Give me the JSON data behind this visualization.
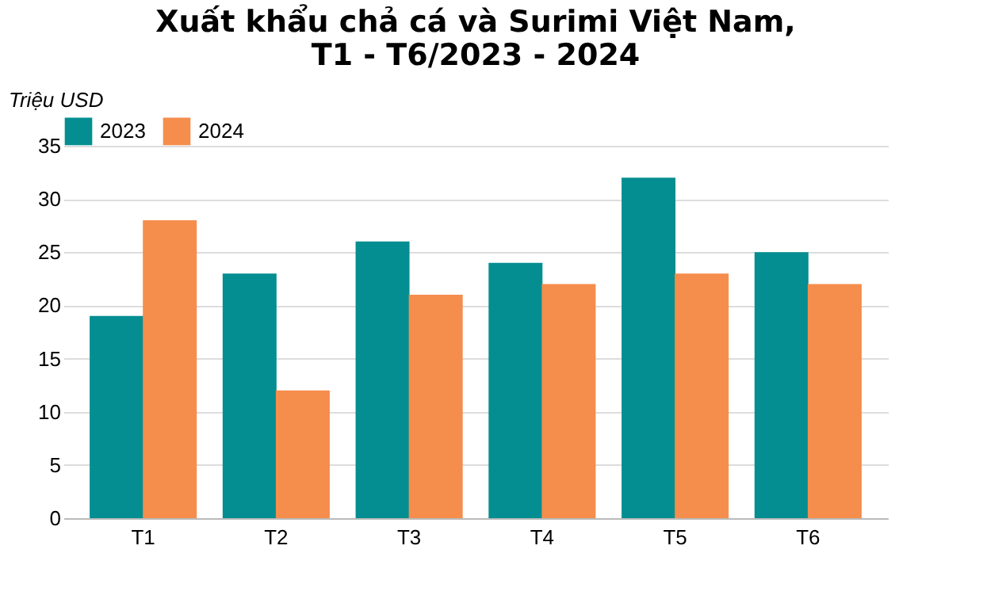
{
  "chart_data": {
    "type": "bar",
    "title": [
      "Xuất khẩu chả cá và Surimi Việt Nam,",
      "T1 - T6/2023 - 2024"
    ],
    "ylabel": "Triệu USD",
    "categories": [
      "T1",
      "T2",
      "T3",
      "T4",
      "T5",
      "T6"
    ],
    "series": [
      {
        "name": "2023",
        "color": "#058e91",
        "values": [
          19,
          23,
          26,
          24,
          32,
          25
        ]
      },
      {
        "name": "2024",
        "color": "#f58d4c",
        "values": [
          28,
          12,
          21,
          22,
          23,
          22
        ]
      }
    ],
    "ylim": [
      0,
      35
    ],
    "yticks": [
      0,
      5,
      10,
      15,
      20,
      25,
      30,
      35
    ],
    "grid": "y",
    "legend": "top"
  }
}
